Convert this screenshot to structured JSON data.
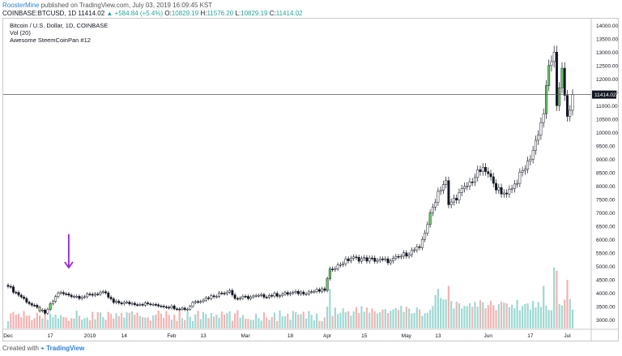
{
  "header": {
    "publisher": "RoosterMine",
    "published_text": " published on TradingView.com, July 03, 2019 16:09:45 KST",
    "symbol": "COINBASE:BTCUSD, 1D",
    "last": "11414.02",
    "change": "▲ +584.84 (+5.4%)",
    "o_label": "O:",
    "o_value": "10829.19",
    "h_label": "H:",
    "h_value": "11576.20",
    "l_label": "L:",
    "l_value": "10829.19",
    "c_label": "C:",
    "c_value": "11414.02"
  },
  "legend": {
    "line1": "Bitcoin / U.S. Dollar, 1D, COINBASE",
    "line2": "Vol (20)",
    "line3": "Awesome SteemCoinPan #12"
  },
  "footer": {
    "created_with": "Created with",
    "brand": "TradingView"
  },
  "colors": {
    "up": "#26a69a",
    "down": "#ef5350",
    "candle_up_fill": "#ffffff",
    "candle_highlight": "#5fd35f",
    "candle_yellow": "#d8cc5a",
    "vol_up": "#9ed9d3",
    "vol_down": "#f4b3b1",
    "arrow": "#9c27d6",
    "price_line": "#555555",
    "price_tag_bg": "#131722"
  },
  "chart_data": {
    "type": "candlestick",
    "x_range": [
      "2018-12-01",
      "2019-07-03"
    ],
    "y_range": [
      2650,
      14250
    ],
    "y_ticks": [
      "3000.00",
      "3500.00",
      "4000.00",
      "4500.00",
      "5000.00",
      "5500.00",
      "6000.00",
      "6500.00",
      "7000.00",
      "7500.00",
      "8000.00",
      "8500.00",
      "9000.00",
      "9500.00",
      "10000.00",
      "10500.00",
      "11000.00",
      "11500.00",
      "12000.00",
      "12500.00",
      "13000.00",
      "13500.00",
      "14000.00"
    ],
    "y_tick_values": [
      3000,
      3500,
      4000,
      4500,
      5000,
      5500,
      6000,
      6500,
      7000,
      7500,
      8000,
      8500,
      9000,
      9500,
      10000,
      10500,
      11000,
      11500,
      12000,
      12500,
      13000,
      13500,
      14000
    ],
    "x_ticks": [
      {
        "label": "Dec",
        "date": "2018-12-01"
      },
      {
        "label": "17",
        "date": "2018-12-17"
      },
      {
        "label": "2019",
        "date": "2019-01-01"
      },
      {
        "label": "14",
        "date": "2019-01-14"
      },
      {
        "label": "Feb",
        "date": "2019-02-01"
      },
      {
        "label": "13",
        "date": "2019-02-13"
      },
      {
        "label": "Mar",
        "date": "2019-03-01"
      },
      {
        "label": "18",
        "date": "2019-03-18"
      },
      {
        "label": "Apr",
        "date": "2019-04-01"
      },
      {
        "label": "15",
        "date": "2019-04-15"
      },
      {
        "label": "May",
        "date": "2019-05-01"
      },
      {
        "label": "13",
        "date": "2019-05-13"
      },
      {
        "label": "Jun",
        "date": "2019-06-01"
      },
      {
        "label": "17",
        "date": "2019-06-17"
      },
      {
        "label": "Jul",
        "date": "2019-07-01"
      }
    ],
    "last_price": 11414.02,
    "last_price_label": "11414.02",
    "arrow_marker": {
      "date": "2018-12-24",
      "price_top": 6200,
      "price_bottom": 4950
    },
    "anchors": [
      {
        "date": "2018-12-01",
        "close": 4250
      },
      {
        "date": "2018-12-10",
        "close": 3550
      },
      {
        "date": "2018-12-15",
        "close": 3250
      },
      {
        "date": "2018-12-20",
        "close": 4000
      },
      {
        "date": "2018-12-29",
        "close": 3850
      },
      {
        "date": "2019-01-06",
        "close": 4050
      },
      {
        "date": "2019-01-10",
        "close": 3650
      },
      {
        "date": "2019-01-25",
        "close": 3580
      },
      {
        "date": "2019-02-07",
        "close": 3400
      },
      {
        "date": "2019-02-09",
        "close": 3650
      },
      {
        "date": "2019-02-23",
        "close": 4100
      },
      {
        "date": "2019-02-25",
        "close": 3800
      },
      {
        "date": "2019-03-31",
        "close": 4100
      },
      {
        "date": "2019-04-02",
        "close": 4900
      },
      {
        "date": "2019-04-05",
        "close": 5050
      },
      {
        "date": "2019-04-10",
        "close": 5300
      },
      {
        "date": "2019-04-25",
        "close": 5200
      },
      {
        "date": "2019-05-06",
        "close": 5700
      },
      {
        "date": "2019-05-13",
        "close": 7800
      },
      {
        "date": "2019-05-16",
        "close": 8200
      },
      {
        "date": "2019-05-17",
        "close": 7300
      },
      {
        "date": "2019-05-24",
        "close": 8000
      },
      {
        "date": "2019-05-30",
        "close": 8700
      },
      {
        "date": "2019-06-03",
        "close": 8100
      },
      {
        "date": "2019-06-06",
        "close": 7700
      },
      {
        "date": "2019-06-10",
        "close": 7900
      },
      {
        "date": "2019-06-17",
        "close": 9000
      },
      {
        "date": "2019-06-22",
        "close": 10700
      },
      {
        "date": "2019-06-24",
        "close": 12500
      },
      {
        "date": "2019-06-26",
        "close": 13000
      },
      {
        "date": "2019-06-27",
        "close": 11000
      },
      {
        "date": "2019-06-29",
        "close": 12400
      },
      {
        "date": "2019-07-01",
        "close": 10600
      },
      {
        "date": "2019-07-02",
        "close": 10829.19
      },
      {
        "date": "2019-07-03",
        "close": 11414.02
      }
    ],
    "volume_spikes": [
      {
        "date": "2019-04-02",
        "level": 0.65
      },
      {
        "date": "2019-05-12",
        "level": 0.55
      },
      {
        "date": "2019-05-13",
        "level": 0.65
      },
      {
        "date": "2019-05-14",
        "level": 0.5
      },
      {
        "date": "2019-05-17",
        "level": 0.7
      },
      {
        "date": "2019-06-26",
        "level": 1.0
      },
      {
        "date": "2019-06-27",
        "level": 0.95
      },
      {
        "date": "2019-06-22",
        "level": 0.7
      },
      {
        "date": "2019-07-01",
        "level": 0.8
      }
    ]
  }
}
